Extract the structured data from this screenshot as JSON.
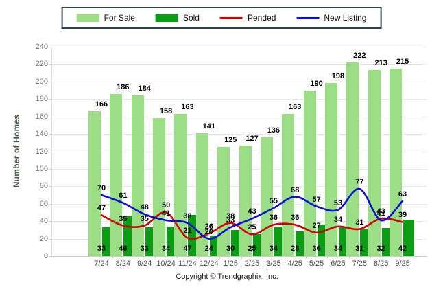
{
  "chart_data": {
    "type": "combo-bar-line",
    "categories": [
      "7/24",
      "8/24",
      "9/24",
      "10/24",
      "11/24",
      "12/24",
      "1/25",
      "2/25",
      "3/25",
      "4/25",
      "5/25",
      "6/25",
      "7/25",
      "8/25",
      "9/25"
    ],
    "series": [
      {
        "name": "For Sale",
        "type": "bar",
        "color": "#9bde85",
        "values": [
          166,
          186,
          184,
          158,
          163,
          141,
          125,
          127,
          136,
          163,
          190,
          198,
          222,
          213,
          215
        ]
      },
      {
        "name": "Sold",
        "type": "bar",
        "color": "#0a9e14",
        "values": [
          33,
          46,
          33,
          34,
          47,
          24,
          30,
          25,
          34,
          28,
          36,
          34,
          31,
          32,
          42
        ]
      },
      {
        "name": "Pended",
        "type": "line",
        "color": "#cc0000",
        "values": [
          47,
          35,
          35,
          50,
          21,
          26,
          38,
          25,
          36,
          36,
          27,
          34,
          31,
          43,
          39
        ]
      },
      {
        "name": "New Listing",
        "type": "line",
        "color": "#0b0bd9",
        "values": [
          70,
          61,
          48,
          41,
          38,
          20,
          33,
          43,
          55,
          68,
          57,
          53,
          77,
          41,
          63
        ]
      }
    ],
    "ylabel": "Number of Homes",
    "xlabel": "",
    "ylim": [
      0,
      240
    ],
    "yticks": [
      0,
      20,
      40,
      60,
      80,
      100,
      120,
      140,
      160,
      180,
      200,
      220,
      240
    ],
    "grid": true,
    "legend_position": "top",
    "legend_border_color": "#2d4355",
    "gridline_color": "#e9e9e9",
    "copyright": "Copyright © Trendgraphix, Inc."
  }
}
